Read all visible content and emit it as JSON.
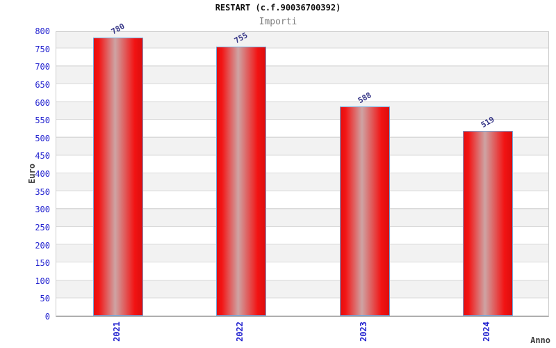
{
  "header": {
    "title": "RESTART (c.f.90036700392)",
    "subtitle": "Importi"
  },
  "chart_data": {
    "type": "bar",
    "title": "RESTART (c.f.90036700392)",
    "subtitle": "Importi",
    "categories": [
      "2021",
      "2022",
      "2023",
      "2024"
    ],
    "values": [
      780,
      755,
      588,
      519
    ],
    "xlabel": "Anno",
    "ylabel": "Euro",
    "ylim": [
      0,
      800
    ],
    "ytick_step": 50,
    "grid": "horizontal-bands-alternating",
    "legend": "none",
    "bar_labels_rotation_deg": -30,
    "xtick_rotation_deg": -90
  },
  "colors": {
    "axis_label_blue": "#2222cf",
    "value_label_navy": "#333385",
    "bar_red": "#ee1010",
    "bar_highlight": "#cea4a4",
    "bar_border_blue": "#6fa8dc",
    "band_gray": "#f2f2f2",
    "grid_line": "#dadada",
    "plot_border": "#cccccc",
    "axis_line": "#999999",
    "subtitle_gray": "#7d7d7d",
    "axis_title_gray": "#3f3f3f",
    "title_black": "#111111",
    "background": "#ffffff"
  }
}
